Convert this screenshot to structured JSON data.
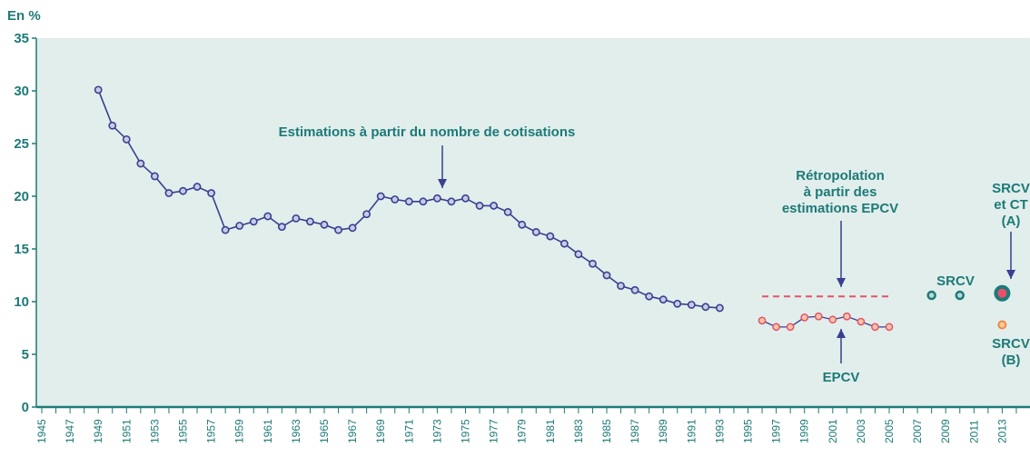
{
  "chart_data": {
    "type": "line",
    "ylabel": "En %",
    "ylim": [
      0,
      35
    ],
    "yticks": [
      0,
      5,
      10,
      15,
      20,
      25,
      30,
      35
    ],
    "xticks": [
      1945,
      1947,
      1949,
      1951,
      1953,
      1955,
      1957,
      1959,
      1961,
      1963,
      1965,
      1967,
      1969,
      1971,
      1973,
      1975,
      1977,
      1979,
      1981,
      1983,
      1985,
      1987,
      1989,
      1991,
      1993,
      1995,
      1997,
      1999,
      2001,
      2003,
      2005,
      2007,
      2009,
      2011,
      2013
    ],
    "xlim": [
      1945,
      2014
    ],
    "grid": false,
    "colors": {
      "background": "#e1eeec",
      "axis": "#1d7a78",
      "text": "#1d7a78",
      "series_main": "#3a3f8f",
      "series_main_fill": "#c9cbe6",
      "series_epcv": "#e8506a",
      "series_epcv_fill": "#f6c7a8",
      "retropolation": "#e8506a",
      "srcv": "#1d7a78",
      "srcv_ct_inner": "#e8506a",
      "srcv_b": "#f08a3c",
      "arrow": "#3a3f8f"
    },
    "series": [
      {
        "x": [
          1949,
          1950,
          1951,
          1952,
          1953,
          1954,
          1955,
          1956,
          1957,
          1958,
          1959,
          1960,
          1961,
          1962,
          1963,
          1964,
          1965,
          1966,
          1967,
          1968,
          1969,
          1970,
          1971,
          1972,
          1973,
          1974,
          1975,
          1976,
          1977,
          1978,
          1979,
          1980,
          1981,
          1982,
          1983,
          1984,
          1985,
          1986,
          1987,
          1988,
          1989,
          1990,
          1991,
          1992,
          1993
        ],
        "values": [
          30.1,
          26.7,
          25.4,
          23.1,
          21.9,
          20.3,
          20.5,
          20.9,
          20.3,
          16.8,
          17.2,
          17.6,
          18.1,
          17.1,
          17.9,
          17.6,
          17.3,
          16.8,
          17.0,
          18.3,
          20.0,
          19.7,
          19.5,
          19.5,
          19.8,
          19.5,
          19.8,
          19.1,
          19.1,
          18.5,
          17.3,
          16.6,
          16.2,
          15.5,
          14.5,
          13.6,
          12.5,
          11.5,
          11.1,
          10.5,
          10.2,
          9.8,
          9.7,
          9.5,
          9.4
        ]
      },
      {
        "name": "EPCV",
        "x": [
          1996,
          1997,
          1998,
          1999,
          2000,
          2001,
          2002,
          2003,
          2004,
          2005
        ],
        "values": [
          8.2,
          7.6,
          7.6,
          8.5,
          8.6,
          8.3,
          8.6,
          8.1,
          7.6,
          7.6
        ]
      },
      {
        "name": "SRCV",
        "x": [
          2008,
          2010
        ],
        "values": [
          10.6,
          10.6
        ]
      }
    ],
    "retropolation": {
      "x_start": 1996,
      "x_end": 2005,
      "value": 10.5
    },
    "srcv_ct_a": {
      "x": 2013,
      "value": 10.8
    },
    "srcv_b": {
      "x": 2013,
      "value": 7.8
    },
    "annotations": {
      "main": "Estimations à partir du nombre de cotisations",
      "retro_lines": [
        "Rétropolation",
        "à partir des",
        "estimations EPCV"
      ],
      "epcv": "EPCV",
      "srcv": "SRCV",
      "srcv_ct_lines": [
        "SRCV",
        "et CT",
        "(A)"
      ],
      "srcv_b_lines": [
        "SRCV",
        "(B)"
      ]
    }
  }
}
